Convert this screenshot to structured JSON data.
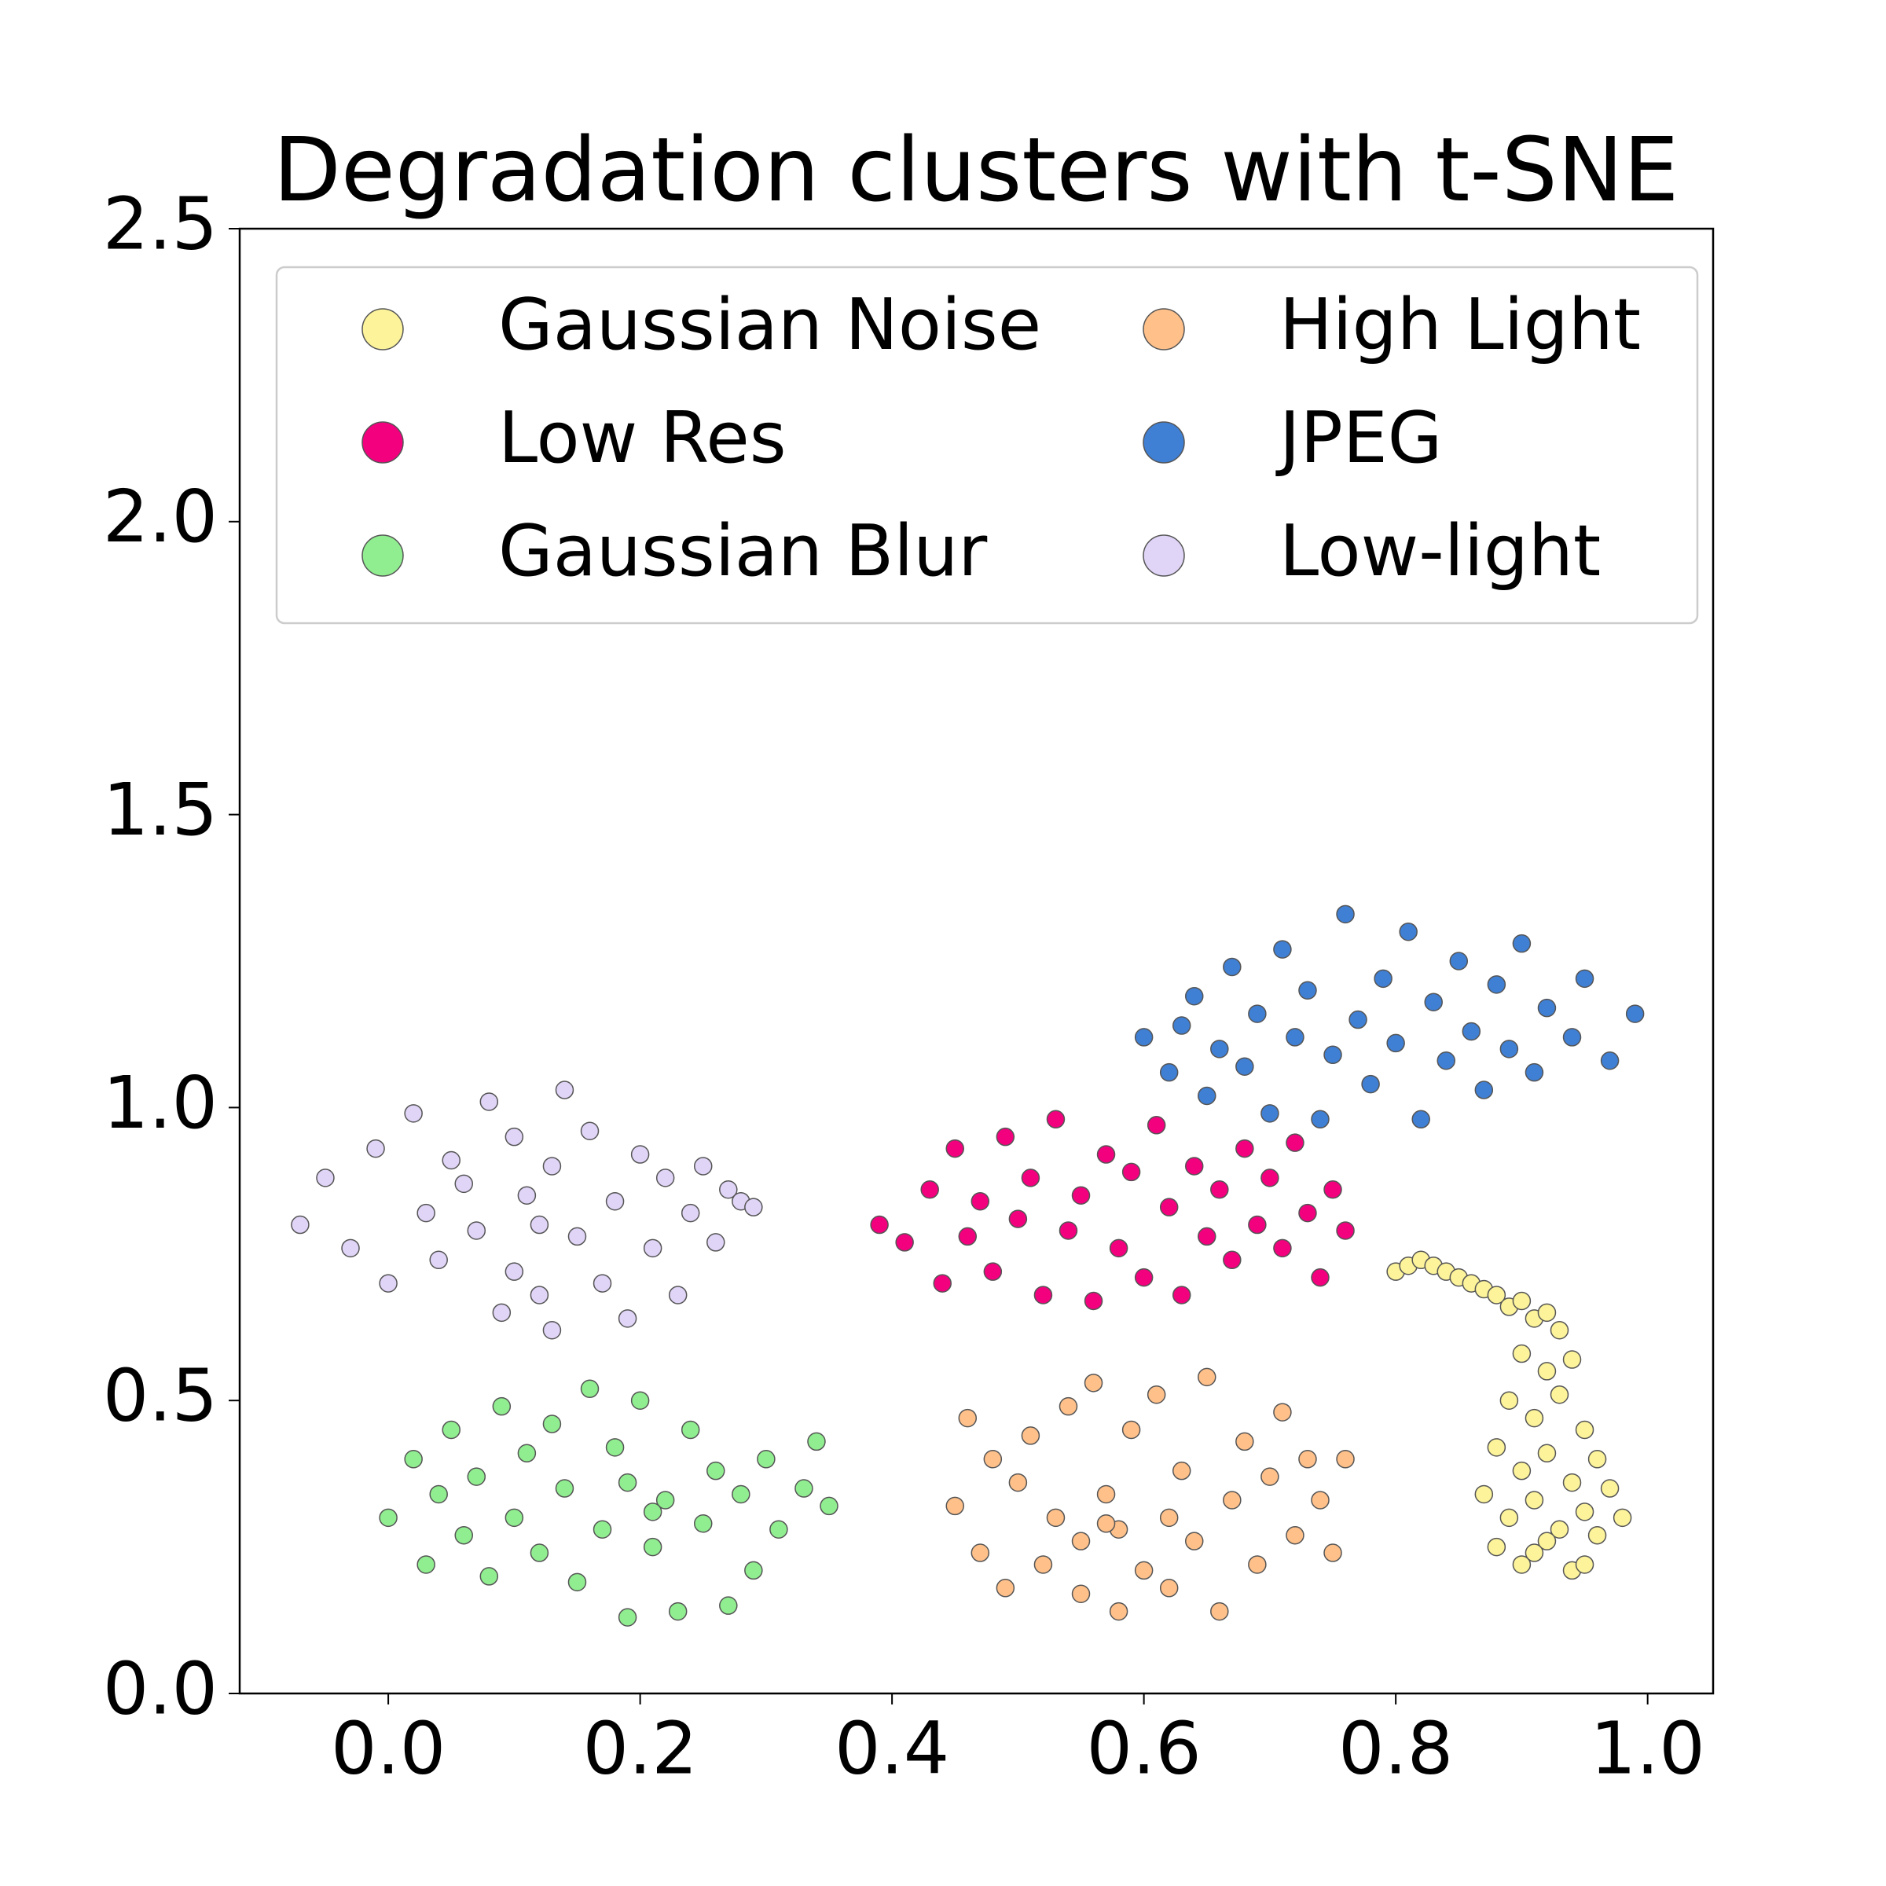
{
  "chart_data": {
    "type": "scatter",
    "title": "Degradation clusters with t-SNE",
    "xlim": [
      -0.118,
      1.052
    ],
    "ylim": [
      0,
      2.5
    ],
    "xticks": [
      {
        "value": 0,
        "label": "0.0"
      },
      0.2,
      0.4,
      0.6,
      0.8,
      {
        "value": 1,
        "label": "1.0"
      }
    ],
    "yticks": [
      {
        "value": 0,
        "label": "0.0"
      },
      0.5,
      {
        "value": 1,
        "label": "1.0"
      },
      1.5,
      {
        "value": 2,
        "label": "2.0"
      },
      2.5
    ],
    "grid": false,
    "legend": "upper",
    "legend_columns": 2,
    "series": [
      {
        "name": "Gaussian Noise",
        "color": "#fcf39a",
        "x": [
          0.8,
          0.81,
          0.82,
          0.83,
          0.84,
          0.85,
          0.86,
          0.87,
          0.88,
          0.89,
          0.9,
          0.91,
          0.92,
          0.93,
          0.9,
          0.92,
          0.94,
          0.89,
          0.91,
          0.93,
          0.95,
          0.88,
          0.9,
          0.92,
          0.94,
          0.96,
          0.87,
          0.89,
          0.91,
          0.93,
          0.95,
          0.97,
          0.88,
          0.9,
          0.92,
          0.94,
          0.96,
          0.98,
          0.91,
          0.95
        ],
        "y": [
          0.72,
          0.73,
          0.74,
          0.73,
          0.72,
          0.71,
          0.7,
          0.69,
          0.68,
          0.66,
          0.67,
          0.64,
          0.65,
          0.62,
          0.58,
          0.55,
          0.57,
          0.5,
          0.47,
          0.51,
          0.45,
          0.42,
          0.38,
          0.41,
          0.36,
          0.4,
          0.34,
          0.3,
          0.33,
          0.28,
          0.31,
          0.35,
          0.25,
          0.22,
          0.26,
          0.21,
          0.27,
          0.3,
          0.24,
          0.22
        ]
      },
      {
        "name": "Low Res",
        "color": "#f2007e",
        "x": [
          0.39,
          0.41,
          0.43,
          0.44,
          0.45,
          0.46,
          0.47,
          0.48,
          0.49,
          0.5,
          0.51,
          0.52,
          0.53,
          0.54,
          0.55,
          0.56,
          0.57,
          0.58,
          0.59,
          0.6,
          0.61,
          0.62,
          0.63,
          0.64,
          0.65,
          0.66,
          0.67,
          0.68,
          0.69,
          0.7,
          0.71,
          0.72,
          0.73,
          0.74,
          0.75,
          0.76
        ],
        "y": [
          0.8,
          0.77,
          0.86,
          0.7,
          0.93,
          0.78,
          0.84,
          0.72,
          0.95,
          0.81,
          0.88,
          0.68,
          0.98,
          0.79,
          0.85,
          0.67,
          0.92,
          0.76,
          0.89,
          0.71,
          0.97,
          0.83,
          0.68,
          0.9,
          0.78,
          0.86,
          0.74,
          0.93,
          0.8,
          0.88,
          0.76,
          0.94,
          0.82,
          0.71,
          0.86,
          0.79
        ]
      },
      {
        "name": "Gaussian Blur",
        "color": "#90ee90",
        "x": [
          0.0,
          0.02,
          0.03,
          0.04,
          0.05,
          0.06,
          0.07,
          0.08,
          0.09,
          0.1,
          0.11,
          0.12,
          0.13,
          0.14,
          0.15,
          0.16,
          0.17,
          0.18,
          0.19,
          0.19,
          0.2,
          0.21,
          0.22,
          0.23,
          0.24,
          0.25,
          0.26,
          0.27,
          0.28,
          0.29,
          0.3,
          0.31,
          0.33,
          0.34,
          0.35,
          0.21
        ],
        "y": [
          0.3,
          0.4,
          0.22,
          0.34,
          0.45,
          0.27,
          0.37,
          0.2,
          0.49,
          0.3,
          0.41,
          0.24,
          0.46,
          0.35,
          0.19,
          0.52,
          0.28,
          0.42,
          0.13,
          0.36,
          0.5,
          0.25,
          0.33,
          0.14,
          0.45,
          0.29,
          0.38,
          0.15,
          0.34,
          0.21,
          0.4,
          0.28,
          0.35,
          0.43,
          0.32,
          0.31
        ]
      },
      {
        "name": "High Light",
        "color": "#ffc08a",
        "x": [
          0.45,
          0.46,
          0.47,
          0.48,
          0.49,
          0.5,
          0.51,
          0.52,
          0.53,
          0.54,
          0.55,
          0.55,
          0.56,
          0.57,
          0.58,
          0.58,
          0.59,
          0.6,
          0.61,
          0.62,
          0.62,
          0.63,
          0.64,
          0.65,
          0.66,
          0.67,
          0.68,
          0.69,
          0.7,
          0.71,
          0.72,
          0.73,
          0.74,
          0.75,
          0.76,
          0.57
        ],
        "y": [
          0.32,
          0.47,
          0.24,
          0.4,
          0.18,
          0.36,
          0.44,
          0.22,
          0.3,
          0.49,
          0.17,
          0.26,
          0.53,
          0.34,
          0.14,
          0.28,
          0.45,
          0.21,
          0.51,
          0.3,
          0.18,
          0.38,
          0.26,
          0.54,
          0.14,
          0.33,
          0.43,
          0.22,
          0.37,
          0.48,
          0.27,
          0.4,
          0.33,
          0.24,
          0.4,
          0.29
        ]
      },
      {
        "name": "JPEG",
        "color": "#3f7fd4",
        "x": [
          0.6,
          0.62,
          0.63,
          0.64,
          0.65,
          0.66,
          0.67,
          0.68,
          0.69,
          0.7,
          0.71,
          0.72,
          0.73,
          0.74,
          0.75,
          0.76,
          0.77,
          0.78,
          0.79,
          0.8,
          0.81,
          0.82,
          0.83,
          0.84,
          0.85,
          0.86,
          0.87,
          0.88,
          0.89,
          0.9,
          0.91,
          0.92,
          0.94,
          0.95,
          0.97,
          0.99
        ],
        "y": [
          1.12,
          1.06,
          1.14,
          1.19,
          1.02,
          1.1,
          1.24,
          1.07,
          1.16,
          0.99,
          1.27,
          1.12,
          1.2,
          0.98,
          1.09,
          1.33,
          1.15,
          1.04,
          1.22,
          1.11,
          1.3,
          0.98,
          1.18,
          1.08,
          1.25,
          1.13,
          1.03,
          1.21,
          1.1,
          1.28,
          1.06,
          1.17,
          1.12,
          1.22,
          1.08,
          1.16
        ]
      },
      {
        "name": "Low-light",
        "color": "#e0d4f7",
        "x": [
          -0.07,
          -0.05,
          -0.03,
          -0.01,
          0.0,
          0.02,
          0.03,
          0.04,
          0.05,
          0.06,
          0.07,
          0.08,
          0.09,
          0.1,
          0.1,
          0.11,
          0.12,
          0.13,
          0.13,
          0.14,
          0.15,
          0.16,
          0.17,
          0.18,
          0.19,
          0.2,
          0.21,
          0.22,
          0.23,
          0.24,
          0.25,
          0.26,
          0.27,
          0.28,
          0.29,
          0.12
        ],
        "y": [
          0.8,
          0.88,
          0.76,
          0.93,
          0.7,
          0.99,
          0.82,
          0.74,
          0.91,
          0.87,
          0.79,
          1.01,
          0.65,
          0.95,
          0.72,
          0.85,
          0.68,
          0.9,
          0.62,
          1.03,
          0.78,
          0.96,
          0.7,
          0.84,
          0.64,
          0.92,
          0.76,
          0.88,
          0.68,
          0.82,
          0.9,
          0.77,
          0.86,
          0.84,
          0.83,
          0.8
        ]
      }
    ]
  }
}
